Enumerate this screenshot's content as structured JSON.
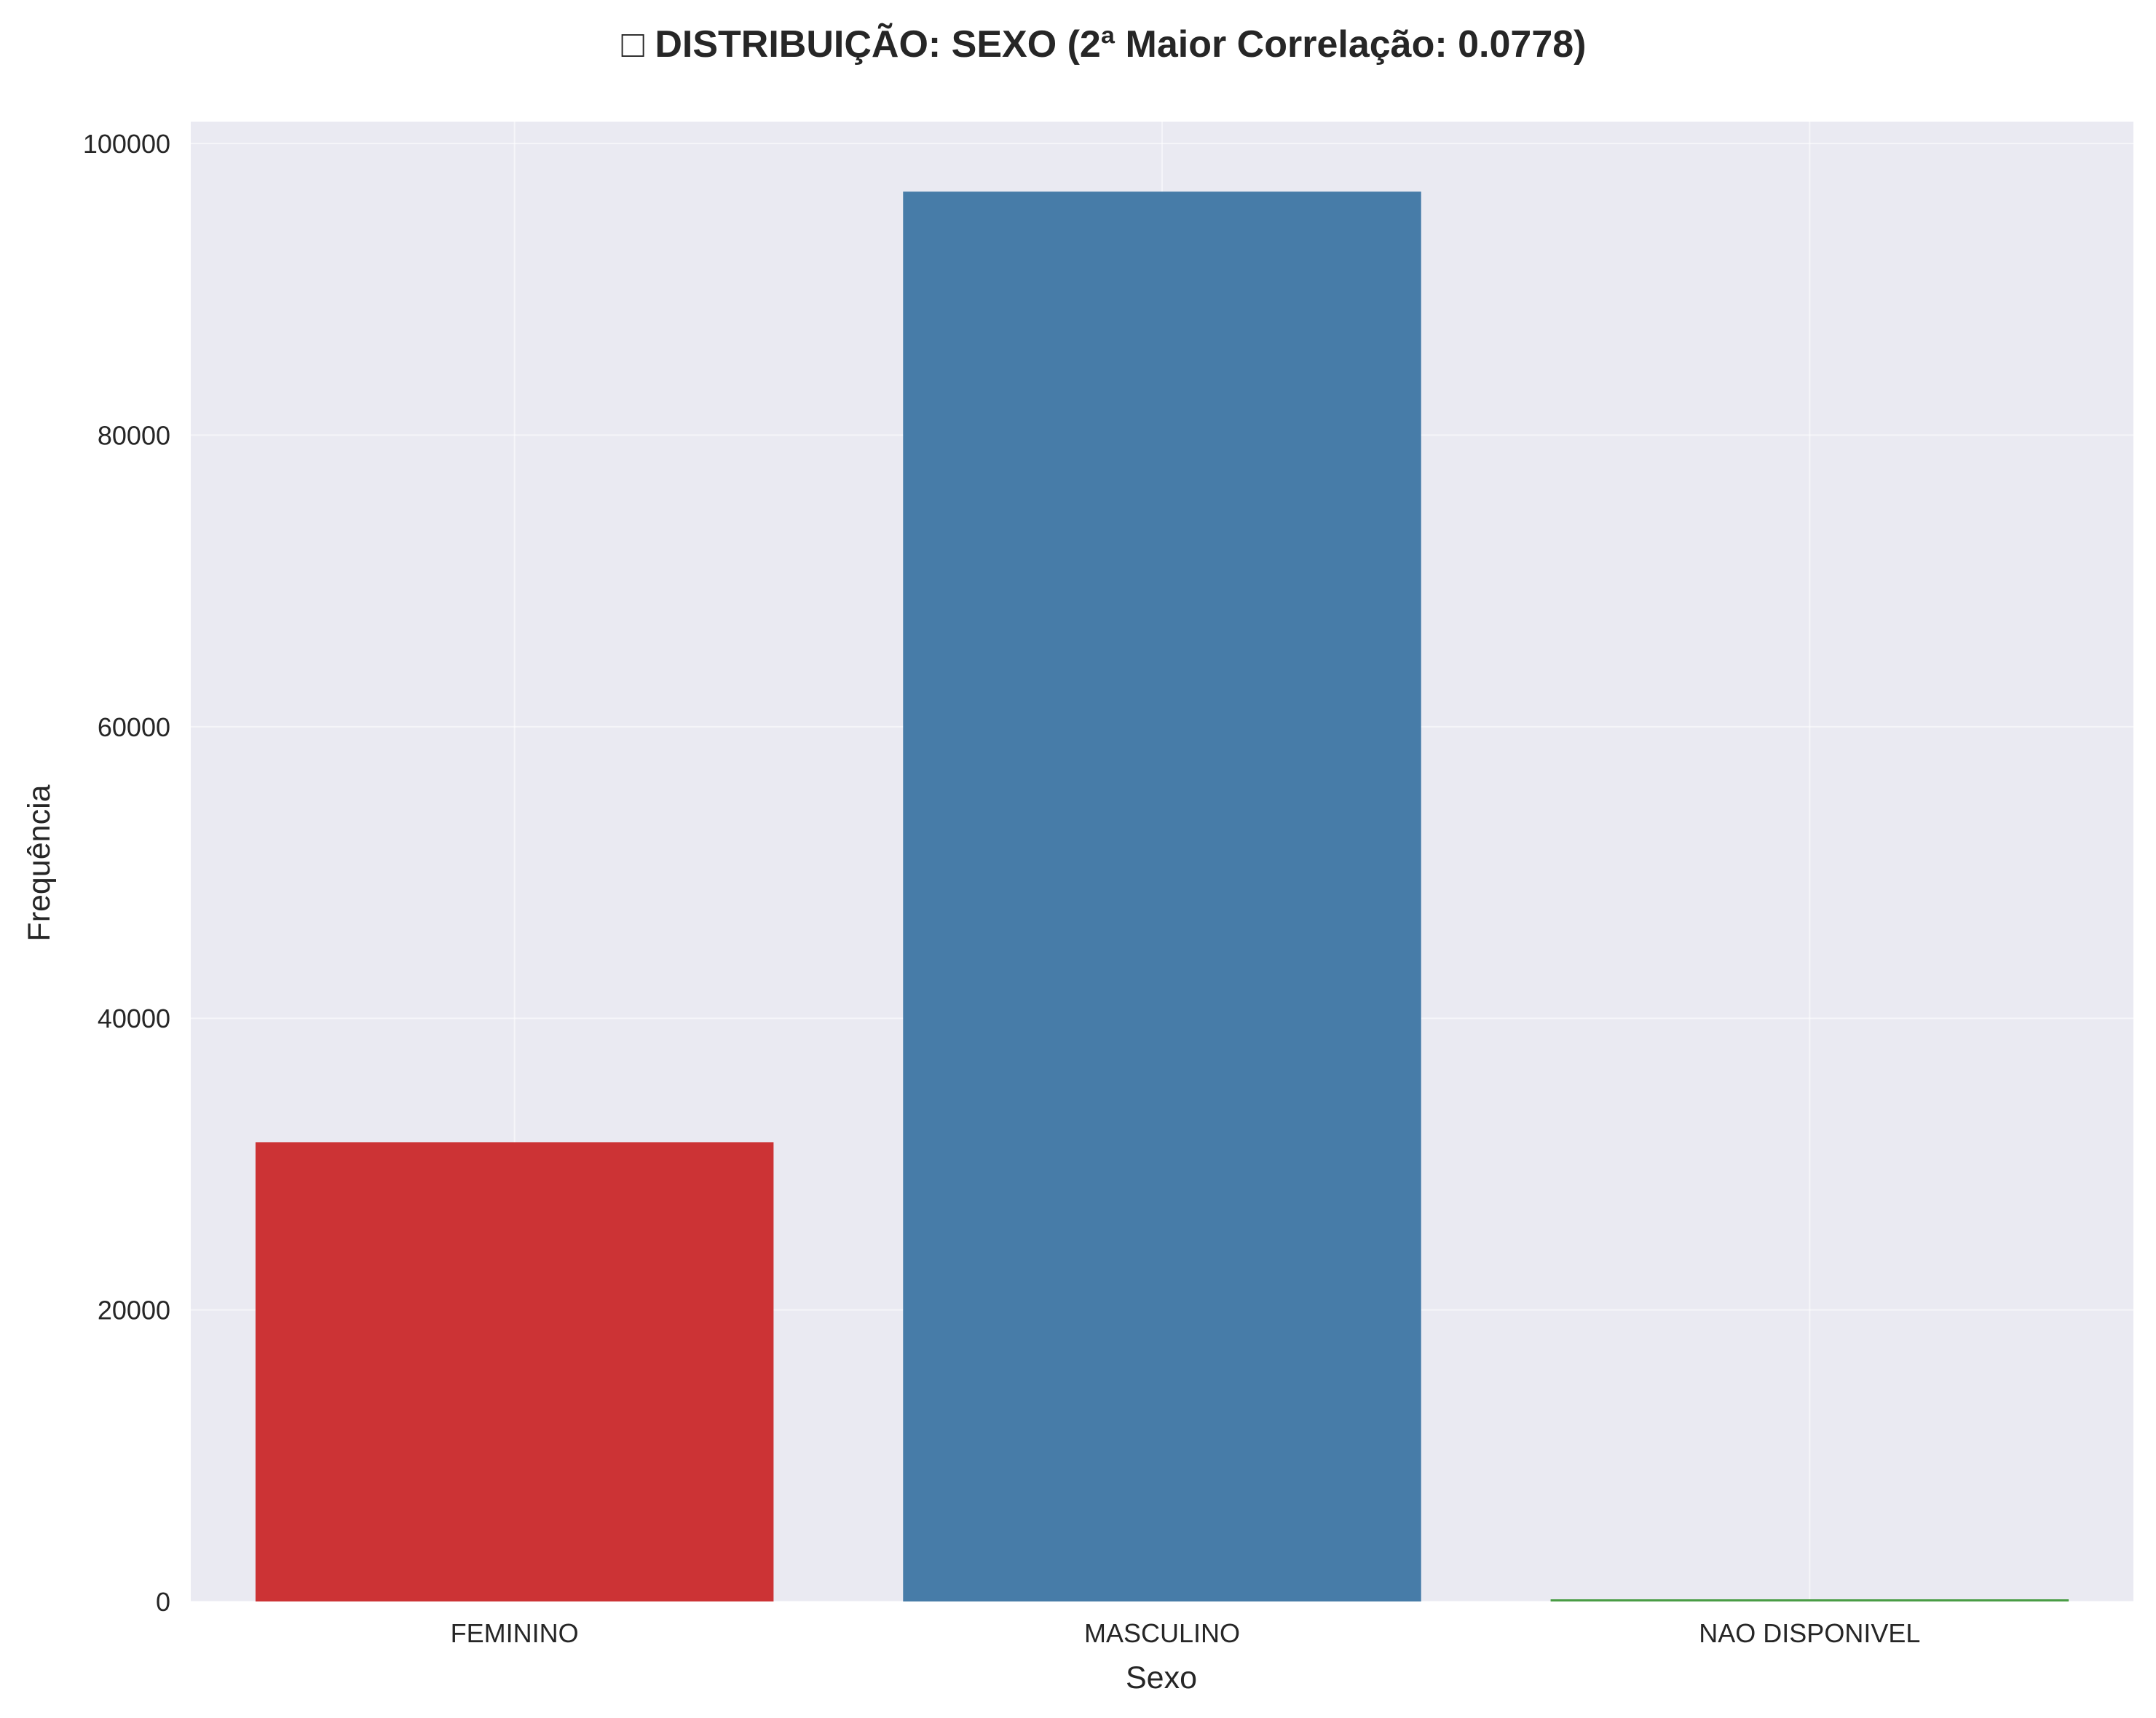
{
  "chart_data": {
    "type": "bar",
    "title": "□ DISTRIBUIÇÃO: SEXO (2ª Maior Correlação: 0.0778)",
    "xlabel": "Sexo",
    "ylabel": "Frequência",
    "categories": [
      "FEMININO",
      "MASCULINO",
      "NAO DISPONIVEL"
    ],
    "values": [
      31500,
      96700,
      150
    ],
    "colors": [
      "#cc3335",
      "#477ca8",
      "#4a9c45"
    ],
    "ylim": [
      0,
      101500
    ],
    "yticks": [
      0,
      20000,
      40000,
      60000,
      80000,
      100000
    ],
    "ytick_labels": [
      "0",
      "20000",
      "40000",
      "60000",
      "80000",
      "100000"
    ],
    "grid": true,
    "legend": "none",
    "background_color": "#eaeaf2"
  }
}
